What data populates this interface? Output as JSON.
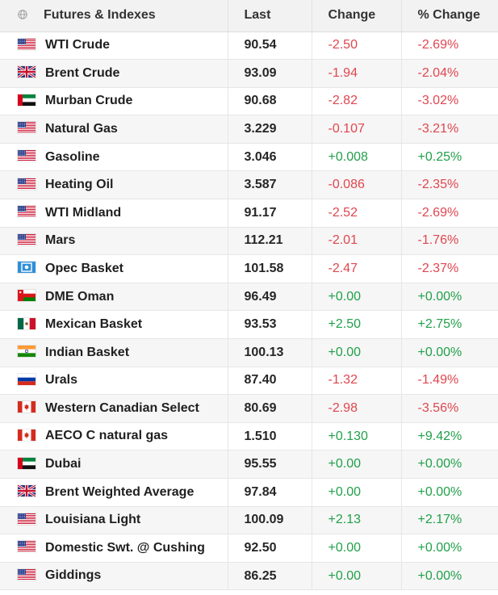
{
  "table": {
    "headers": {
      "name": "Futures & Indexes",
      "last": "Last",
      "change": "Change",
      "pct_change": "% Change"
    },
    "rows": [
      {
        "name": "WTI Crude",
        "flag": "us-flag-icon",
        "last": "90.54",
        "change": "-2.50",
        "pct": "-2.69%",
        "dir": "neg"
      },
      {
        "name": "Brent Crude",
        "flag": "uk-flag-icon",
        "last": "93.09",
        "change": "-1.94",
        "pct": "-2.04%",
        "dir": "neg"
      },
      {
        "name": "Murban Crude",
        "flag": "uae-flag-icon",
        "last": "90.68",
        "change": "-2.82",
        "pct": "-3.02%",
        "dir": "neg"
      },
      {
        "name": "Natural Gas",
        "flag": "us-flag-icon",
        "last": "3.229",
        "change": "-0.107",
        "pct": "-3.21%",
        "dir": "neg"
      },
      {
        "name": "Gasoline",
        "flag": "us-flag-icon",
        "last": "3.046",
        "change": "+0.008",
        "pct": "+0.25%",
        "dir": "pos"
      },
      {
        "name": "Heating Oil",
        "flag": "us-flag-icon",
        "last": "3.587",
        "change": "-0.086",
        "pct": "-2.35%",
        "dir": "neg"
      },
      {
        "name": "WTI Midland",
        "flag": "us-flag-icon",
        "last": "91.17",
        "change": "-2.52",
        "pct": "-2.69%",
        "dir": "neg"
      },
      {
        "name": "Mars",
        "flag": "us-flag-icon",
        "last": "112.21",
        "change": "-2.01",
        "pct": "-1.76%",
        "dir": "neg"
      },
      {
        "name": "Opec Basket",
        "flag": "opec-flag-icon",
        "last": "101.58",
        "change": "-2.47",
        "pct": "-2.37%",
        "dir": "neg"
      },
      {
        "name": "DME Oman",
        "flag": "oman-flag-icon",
        "last": "96.49",
        "change": "+0.00",
        "pct": "+0.00%",
        "dir": "pos"
      },
      {
        "name": "Mexican Basket",
        "flag": "mexico-flag-icon",
        "last": "93.53",
        "change": "+2.50",
        "pct": "+2.75%",
        "dir": "pos"
      },
      {
        "name": "Indian Basket",
        "flag": "india-flag-icon",
        "last": "100.13",
        "change": "+0.00",
        "pct": "+0.00%",
        "dir": "pos"
      },
      {
        "name": "Urals",
        "flag": "russia-flag-icon",
        "last": "87.40",
        "change": "-1.32",
        "pct": "-1.49%",
        "dir": "neg"
      },
      {
        "name": "Western Canadian Select",
        "flag": "canada-flag-icon",
        "last": "80.69",
        "change": "-2.98",
        "pct": "-3.56%",
        "dir": "neg"
      },
      {
        "name": "AECO C natural gas",
        "flag": "canada-flag-icon",
        "last": "1.510",
        "change": "+0.130",
        "pct": "+9.42%",
        "dir": "pos"
      },
      {
        "name": "Dubai",
        "flag": "uae-flag-icon",
        "last": "95.55",
        "change": "+0.00",
        "pct": "+0.00%",
        "dir": "pos"
      },
      {
        "name": "Brent Weighted Average",
        "flag": "uk-flag-icon",
        "last": "97.84",
        "change": "+0.00",
        "pct": "+0.00%",
        "dir": "pos"
      },
      {
        "name": "Louisiana Light",
        "flag": "us-flag-icon",
        "last": "100.09",
        "change": "+2.13",
        "pct": "+2.17%",
        "dir": "pos"
      },
      {
        "name": "Domestic Swt. @ Cushing",
        "flag": "us-flag-icon",
        "last": "92.50",
        "change": "+0.00",
        "pct": "+0.00%",
        "dir": "pos"
      },
      {
        "name": "Giddings",
        "flag": "us-flag-icon",
        "last": "86.25",
        "change": "+0.00",
        "pct": "+0.00%",
        "dir": "pos"
      }
    ]
  },
  "colors": {
    "positive": "#21a04a",
    "negative": "#e0464e",
    "header_bg": "#f2f2f2",
    "row_alt_bg": "#f6f6f6"
  }
}
